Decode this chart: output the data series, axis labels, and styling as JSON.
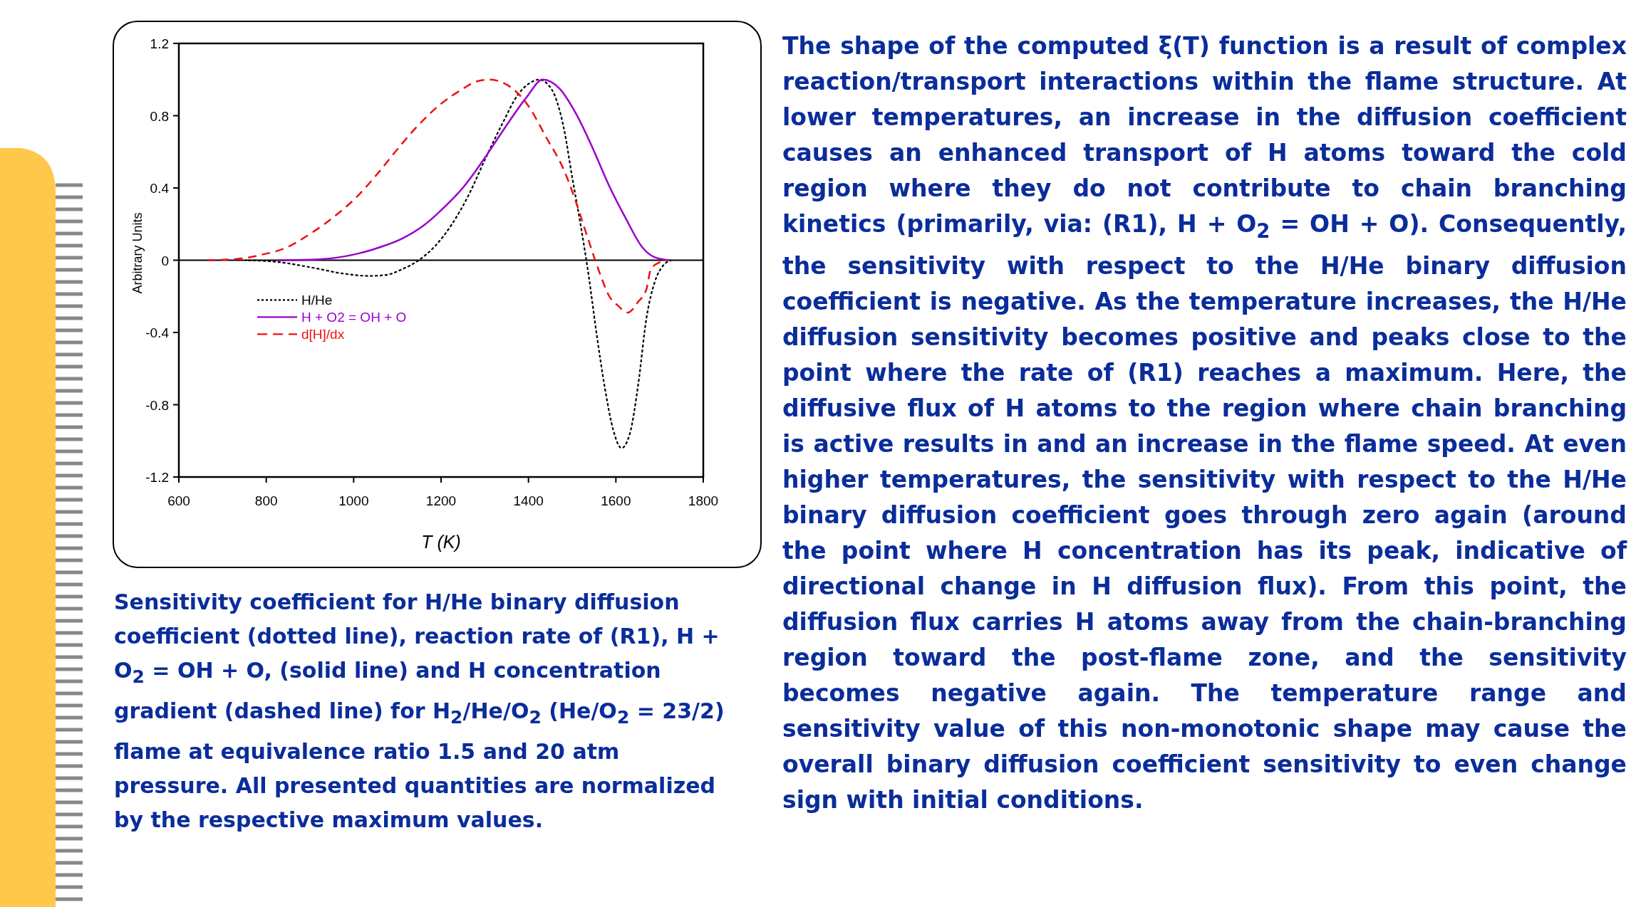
{
  "chart_data": {
    "type": "line",
    "xlabel": "T (K)",
    "ylabel": "Arbitrary Units",
    "xlim": [
      600,
      1800
    ],
    "xticks": [
      600,
      800,
      1000,
      1200,
      1400,
      1600,
      1800
    ],
    "ylim": [
      -1.2,
      1.2
    ],
    "yticks": [
      1.2,
      0.8,
      0.4,
      0,
      -0.4,
      -0.8,
      -1.2
    ],
    "legend": "bottom left",
    "ref_lines": [
      {
        "axis": "y",
        "value": 0,
        "label": null,
        "color": "#000000"
      }
    ],
    "series": [
      {
        "name": "H/He",
        "color": "#000000",
        "line_style": "dotted",
        "x": [
          752,
          827,
          903,
          979,
          1036,
          1073,
          1111,
          1149,
          1187,
          1225,
          1263,
          1301,
          1339,
          1377,
          1410,
          1424,
          1452,
          1481,
          1500,
          1519,
          1538,
          1556,
          1575,
          1594,
          1613,
          1632,
          1651,
          1670,
          1689,
          1708,
          1727
        ],
        "values": [
          0,
          -0.01,
          -0.04,
          -0.075,
          -0.087,
          -0.082,
          -0.05,
          0,
          0.08,
          0.2,
          0.36,
          0.56,
          0.75,
          0.92,
          0.99,
          1.0,
          0.95,
          0.73,
          0.46,
          0.2,
          -0.09,
          -0.41,
          -0.71,
          -0.94,
          -1.04,
          -0.96,
          -0.69,
          -0.32,
          -0.12,
          -0.03,
          0
        ]
      },
      {
        "name": "H + O2 = OH + O",
        "color": "#9900cc",
        "line_style": "solid",
        "x": [
          827,
          922,
          998,
          1064,
          1111,
          1159,
          1206,
          1253,
          1301,
          1348,
          1395,
          1433,
          1471,
          1509,
          1547,
          1585,
          1623,
          1661,
          1689,
          1722
        ],
        "values": [
          0,
          0.005,
          0.03,
          0.075,
          0.12,
          0.19,
          0.29,
          0.41,
          0.57,
          0.74,
          0.9,
          1.0,
          0.95,
          0.81,
          0.62,
          0.41,
          0.23,
          0.07,
          0.016,
          0
        ]
      },
      {
        "name": "d[H]/dx",
        "color": "#ee1111",
        "line_style": "dashed",
        "x": [
          666,
          733,
          789,
          846,
          903,
          960,
          1007,
          1055,
          1102,
          1149,
          1197,
          1244,
          1282,
          1310,
          1358,
          1395,
          1443,
          1481,
          1509,
          1528,
          1547,
          1566,
          1585,
          1604,
          1627,
          1651,
          1670,
          1680,
          1698,
          1717
        ],
        "values": [
          0,
          0.007,
          0.03,
          0.07,
          0.15,
          0.25,
          0.35,
          0.48,
          0.62,
          0.75,
          0.86,
          0.94,
          0.99,
          1.0,
          0.96,
          0.87,
          0.67,
          0.5,
          0.32,
          0.18,
          0.04,
          -0.09,
          -0.2,
          -0.25,
          -0.29,
          -0.23,
          -0.16,
          -0.05,
          -0.014,
          0
        ]
      }
    ],
    "annotations": [
      "Sensitivity coefficient for H/He binary diffusion coefficient (dotted line), reaction rate of (R1), H + O$_{2}$ = OH + O, (solid line) and H concentration gradient (dashed line) for H$_{2}$/He/O$_{2}$ (He/O$_{2}$ = 23/2) flame at equivalence ratio 1.5 and 20 atm pressure. All presented quantities are normalized by the respective maximum values.",
      "The shape of the computed ξ(T) function is a result of complex reaction/transport interactions within the flame structure.  At lower temperatures, an increase in the diffusion coefficient causes an enhanced transport of H atoms toward the cold region where they do not contribute to chain branching kinetics (primarily, via: (R1), H + O$_{2}$ = OH + O).  Consequently, the sensitivity with respect to the H/He binary diffusion coefficient is negative.  As the temperature increases, the H/He diffusion sensitivity becomes positive and peaks close to the point where the rate of (R1) reaches a maximum.  Here, the diffusive flux of H atoms to the region where chain branching is active results in and an increase in the flame speed.  At even higher temperatures, the sensitivity with respect to the H/He binary diffusion coefficient goes through zero again (around the point where H concentration has its peak, indicative of directional change in H diffusion flux).  From this point, the diffusion flux carries H atoms away from the chain-branching region toward the post-flame zone, and the sensitivity becomes negative again.  The temperature range and sensitivity value of this non-monotonic shape may cause the overall binary diffusion coefficient sensitivity to even change sign with initial conditions."
    ]
  }
}
